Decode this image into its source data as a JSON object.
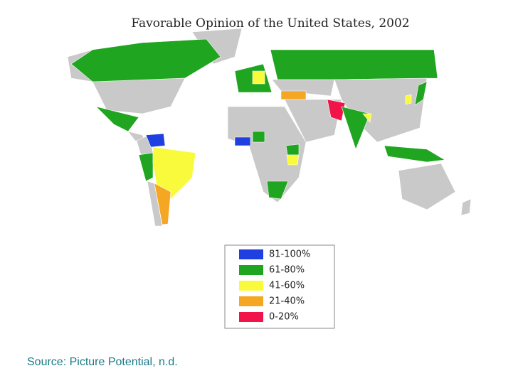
{
  "title": "Favorable Opinion of the United States, 2002",
  "legend": [
    {
      "label": "81-100%",
      "color": "#1f3fe0"
    },
    {
      "label": "61-80%",
      "color": "#1fa51f"
    },
    {
      "label": "41-60%",
      "color": "#fafa3c"
    },
    {
      "label": "21-40%",
      "color": "#f5a623"
    },
    {
      "label": "0-20%",
      "color": "#f0144a"
    }
  ],
  "source": "Source: Picture Potential, n.d."
}
